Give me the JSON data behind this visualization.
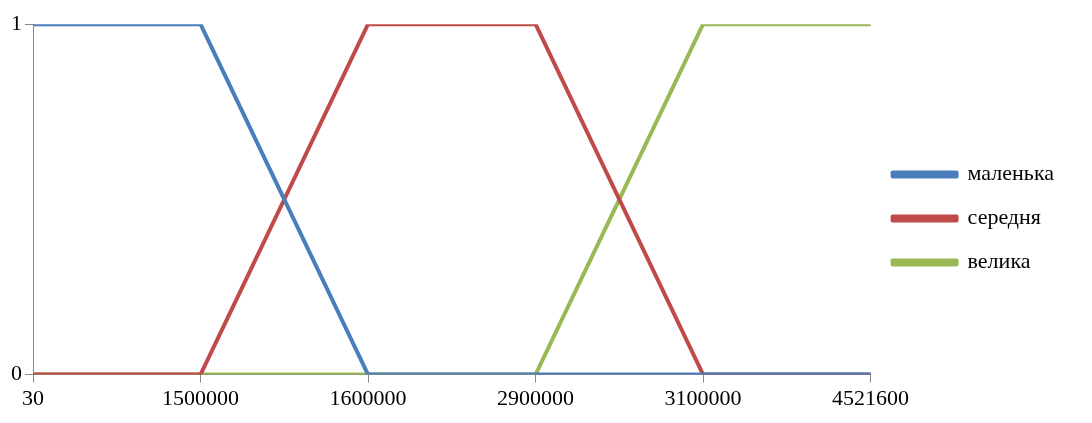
{
  "chart_data": {
    "type": "line",
    "categories": [
      "30",
      "1500000",
      "1600000",
      "2900000",
      "3100000",
      "4521600"
    ],
    "series": [
      {
        "name": "маленька",
        "color": "#4a7ebb",
        "values": [
          1,
          1,
          0,
          0,
          0,
          0
        ]
      },
      {
        "name": "середня",
        "color": "#be4b48",
        "values": [
          0,
          0,
          1,
          1,
          0,
          0
        ]
      },
      {
        "name": "велика",
        "color": "#98b954",
        "values": [
          0,
          0,
          0,
          0,
          1,
          1
        ]
      }
    ],
    "ylim": [
      0,
      1
    ],
    "yticks": [
      0,
      1
    ],
    "legend": "right"
  }
}
